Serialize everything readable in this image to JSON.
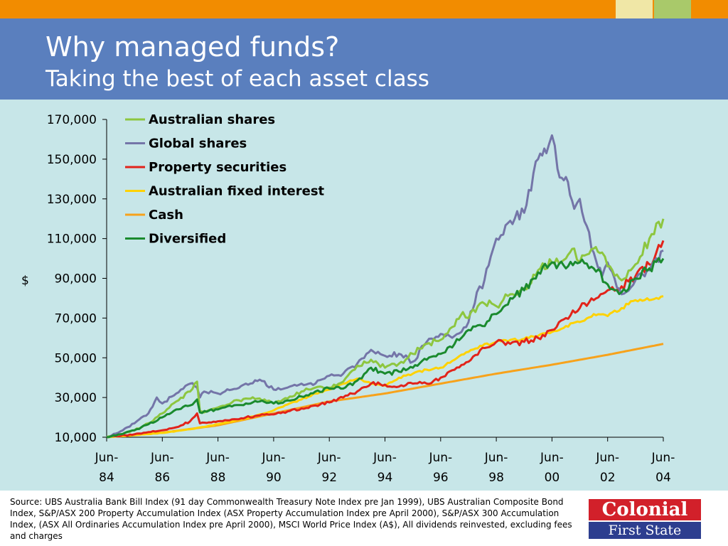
{
  "header": {
    "title": "Why managed funds?",
    "subtitle": "Taking the best of each asset class",
    "colors": {
      "top_bar": "#F28C00",
      "title_bar": "#5A7FBE",
      "accent_box_1": "#F0E7A6",
      "accent_box_2": "#A9C96A"
    }
  },
  "footer": {
    "source": "Source: UBS  Australia Bank Bill Index (91 day Commonwealth Treasury Note Index pre Jan 1999), UBS  Australian Composite Bond Index, S&P/ASX 200 Property Accumulation Index (ASX Property Accumulation Index pre April 2000), S&P/ASX 300 Accumulation Index, (ASX All Ordinaries Accumulation  Index pre April 2000), MSCI World Price Index (A$), All dividends reinvested, excluding fees and charges",
    "logo_top": "Colonial",
    "logo_bottom": "First State"
  },
  "chart_data": {
    "type": "line",
    "ylabel": "$",
    "ylim": [
      10000,
      170000
    ],
    "yticks": [
      10000,
      30000,
      50000,
      70000,
      90000,
      110000,
      130000,
      150000,
      170000
    ],
    "ytick_labels": [
      "10,000",
      "30,000",
      "50,000",
      "70,000",
      "90,000",
      "110,000",
      "130,000",
      "150,000",
      "170,000"
    ],
    "xlim": [
      1984.5,
      2004.5
    ],
    "xticks": [
      1984.5,
      1986.5,
      1988.5,
      1990.5,
      1992.5,
      1994.5,
      1996.5,
      1998.5,
      2000.5,
      2002.5,
      2004.5
    ],
    "xtick_labels": [
      [
        "Jun-",
        "84"
      ],
      [
        "Jun-",
        "86"
      ],
      [
        "Jun-",
        "88"
      ],
      [
        "Jun-",
        "90"
      ],
      [
        "Jun-",
        "92"
      ],
      [
        "Jun-",
        "94"
      ],
      [
        "Jun-",
        "96"
      ],
      [
        "Jun-",
        "98"
      ],
      [
        "Jun-",
        "00"
      ],
      [
        "Jun-",
        "02"
      ],
      [
        "Jun-",
        "04"
      ]
    ],
    "background": "#C7E6E8",
    "legend_position": "top-left",
    "series": [
      {
        "name": "Australian shares",
        "color": "#8DC63F",
        "x": [
          1984.5,
          1985.0,
          1985.5,
          1986.0,
          1986.5,
          1987.0,
          1987.5,
          1987.75,
          1987.85,
          1988.0,
          1988.5,
          1989.0,
          1989.5,
          1990.0,
          1990.5,
          1991.0,
          1991.5,
          1992.0,
          1992.5,
          1993.0,
          1993.5,
          1994.0,
          1994.5,
          1995.0,
          1995.5,
          1996.0,
          1996.5,
          1997.0,
          1997.3,
          1997.5,
          1998.0,
          1998.5,
          1999.0,
          1999.5,
          2000.0,
          2000.5,
          2001.0,
          2001.3,
          2001.5,
          2002.0,
          2002.3,
          2002.5,
          2003.0,
          2003.5,
          2004.0,
          2004.5
        ],
        "y": [
          10000,
          11500,
          13500,
          17000,
          22000,
          28000,
          33000,
          38000,
          23000,
          22500,
          25000,
          27500,
          29500,
          29500,
          27000,
          29500,
          33000,
          35000,
          35000,
          38000,
          46000,
          49000,
          45000,
          47000,
          52000,
          57000,
          59000,
          66000,
          73000,
          70000,
          78000,
          76000,
          82000,
          85000,
          94000,
          98000,
          100000,
          105000,
          98000,
          105000,
          103000,
          96000,
          89000,
          97000,
          110000,
          120000
        ]
      },
      {
        "name": "Global shares",
        "color": "#7475A8",
        "x": [
          1984.5,
          1985.0,
          1985.5,
          1986.0,
          1986.3,
          1986.5,
          1987.0,
          1987.5,
          1987.75,
          1987.85,
          1988.0,
          1988.5,
          1989.0,
          1989.5,
          1990.0,
          1990.5,
          1991.0,
          1991.5,
          1992.0,
          1992.5,
          1993.0,
          1993.5,
          1994.0,
          1994.5,
          1995.0,
          1995.5,
          1996.0,
          1996.5,
          1997.0,
          1997.5,
          1997.8,
          1998.0,
          1998.3,
          1998.5,
          1999.0,
          1999.5,
          2000.0,
          2000.3,
          2000.5,
          2000.7,
          2001.0,
          2001.3,
          2001.5,
          2002.0,
          2002.3,
          2002.5,
          2003.0,
          2003.5,
          2004.0,
          2004.5
        ],
        "y": [
          10000,
          13000,
          17000,
          22000,
          30000,
          27000,
          32000,
          37000,
          35000,
          30000,
          33000,
          32000,
          34000,
          37000,
          39000,
          34000,
          35000,
          37000,
          37000,
          41000,
          42000,
          47000,
          54000,
          51000,
          52000,
          48000,
          58000,
          62000,
          61000,
          68000,
          83000,
          85000,
          101000,
          110000,
          119000,
          123000,
          150000,
          153000,
          162000,
          145000,
          141000,
          125000,
          130000,
          103000,
          91000,
          98000,
          82000,
          89000,
          94000,
          104000
        ]
      },
      {
        "name": "Property securities",
        "color": "#E2231A",
        "x": [
          1984.5,
          1985.5,
          1986.5,
          1987.0,
          1987.5,
          1987.75,
          1987.85,
          1988.5,
          1989.0,
          1989.5,
          1990.0,
          1990.5,
          1991.0,
          1991.5,
          1992.0,
          1992.5,
          1993.0,
          1993.5,
          1994.0,
          1994.5,
          1995.0,
          1995.5,
          1996.0,
          1996.5,
          1997.0,
          1997.5,
          1998.0,
          1998.5,
          1999.0,
          1999.5,
          2000.0,
          2000.5,
          2001.0,
          2001.5,
          2002.0,
          2002.5,
          2003.0,
          2003.5,
          2004.0,
          2004.5
        ],
        "y": [
          10000,
          11500,
          13500,
          15000,
          18000,
          22000,
          17000,
          18000,
          19000,
          20000,
          21000,
          21500,
          23000,
          24500,
          26000,
          27500,
          30000,
          33000,
          37000,
          36500,
          35500,
          37000,
          37000,
          40000,
          44000,
          48000,
          55000,
          58000,
          57000,
          58000,
          60000,
          64000,
          70000,
          75000,
          79000,
          84000,
          86000,
          91000,
          97000,
          109000
        ]
      },
      {
        "name": "Australian fixed interest",
        "color": "#FFD200",
        "x": [
          1984.5,
          1985.5,
          1986.5,
          1987.5,
          1988.5,
          1989.5,
          1990.0,
          1990.5,
          1991.0,
          1991.5,
          1992.0,
          1992.5,
          1993.0,
          1993.5,
          1994.0,
          1994.5,
          1995.0,
          1995.5,
          1996.0,
          1996.5,
          1997.0,
          1997.5,
          1998.0,
          1998.5,
          1999.0,
          1999.5,
          2000.0,
          2000.5,
          2001.0,
          2001.5,
          2002.0,
          2002.5,
          2003.0,
          2003.5,
          2004.0,
          2004.5
        ],
        "y": [
          10000,
          11000,
          12200,
          14000,
          16500,
          19500,
          21500,
          23500,
          26500,
          29000,
          32000,
          34000,
          37000,
          39500,
          37000,
          36000,
          40000,
          42000,
          44000,
          45000,
          49000,
          53000,
          56000,
          58000,
          59000,
          59500,
          61000,
          63000,
          66000,
          68000,
          72000,
          71000,
          75000,
          79000,
          79000,
          81000
        ]
      },
      {
        "name": "Cash",
        "color": "#F7A21B",
        "x": [
          1984.5,
          1986.5,
          1988.5,
          1990.5,
          1992.5,
          1994.5,
          1996.5,
          1998.5,
          2000.5,
          2002.5,
          2004.5
        ],
        "y": [
          10000,
          12300,
          16000,
          22000,
          28000,
          32000,
          37000,
          42000,
          46500,
          51500,
          57000
        ]
      },
      {
        "name": "Diversified",
        "color": "#1A8A2E",
        "x": [
          1984.5,
          1985.0,
          1985.5,
          1986.0,
          1986.5,
          1987.0,
          1987.5,
          1987.75,
          1987.85,
          1988.5,
          1989.0,
          1989.5,
          1990.0,
          1990.5,
          1991.0,
          1991.5,
          1992.0,
          1992.5,
          1993.0,
          1993.5,
          1994.0,
          1994.5,
          1995.0,
          1995.5,
          1996.0,
          1996.5,
          1997.0,
          1997.5,
          1998.0,
          1998.5,
          1999.0,
          1999.5,
          2000.0,
          2000.5,
          2001.0,
          2001.5,
          2002.0,
          2002.5,
          2003.0,
          2003.5,
          2004.0,
          2004.5
        ],
        "y": [
          10000,
          11500,
          13500,
          16500,
          20000,
          24000,
          26000,
          29000,
          22500,
          24000,
          25500,
          27000,
          28000,
          27000,
          28500,
          30500,
          33000,
          34500,
          34500,
          38500,
          45000,
          42000,
          43000,
          45000,
          49000,
          52000,
          57000,
          64000,
          66000,
          72000,
          80000,
          84000,
          93000,
          98000,
          95000,
          98000,
          95000,
          87000,
          83000,
          90000,
          95000,
          100000
        ]
      }
    ]
  }
}
